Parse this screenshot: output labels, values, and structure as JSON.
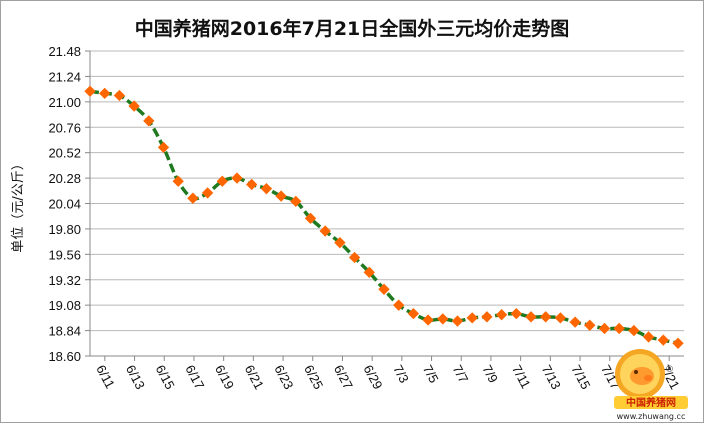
{
  "chart_data": {
    "type": "line",
    "title": "中国养猪网2016年7月21日全国外三元均价走势图",
    "xlabel": "",
    "ylabel": "单位（元/公斤）",
    "ylim": [
      18.6,
      21.48
    ],
    "yticks": [
      "21.48",
      "21.24",
      "21.00",
      "20.76",
      "20.52",
      "20.28",
      "20.04",
      "19.80",
      "19.56",
      "19.32",
      "19.08",
      "18.84",
      "18.60"
    ],
    "x_tick_labels": [
      "6/11",
      "6/13",
      "6/15",
      "6/17",
      "6/19",
      "6/21",
      "6/23",
      "6/25",
      "6/27",
      "6/29",
      "7/3",
      "7/5",
      "7/7",
      "7/9",
      "7/11",
      "7/13",
      "7/15",
      "7/17",
      "7/19",
      "7/21"
    ],
    "series": [
      {
        "name": "外三元均价",
        "color": "#1f7a1f",
        "marker_color": "#ff6600",
        "values": [
          21.1,
          21.08,
          21.06,
          20.96,
          20.82,
          20.57,
          20.25,
          20.09,
          20.14,
          20.25,
          20.28,
          20.22,
          20.18,
          20.11,
          20.06,
          19.9,
          19.78,
          19.67,
          19.53,
          19.39,
          19.23,
          19.08,
          19.0,
          18.94,
          18.95,
          18.93,
          18.96,
          18.97,
          18.99,
          19.0,
          18.97,
          18.97,
          18.96,
          18.92,
          18.89,
          18.86,
          18.86,
          18.84,
          18.78,
          18.75,
          18.72
        ]
      }
    ]
  },
  "logo": {
    "text": "中国养猪网",
    "url": "www.zhuwang.cc",
    "registered_mark": "®"
  }
}
